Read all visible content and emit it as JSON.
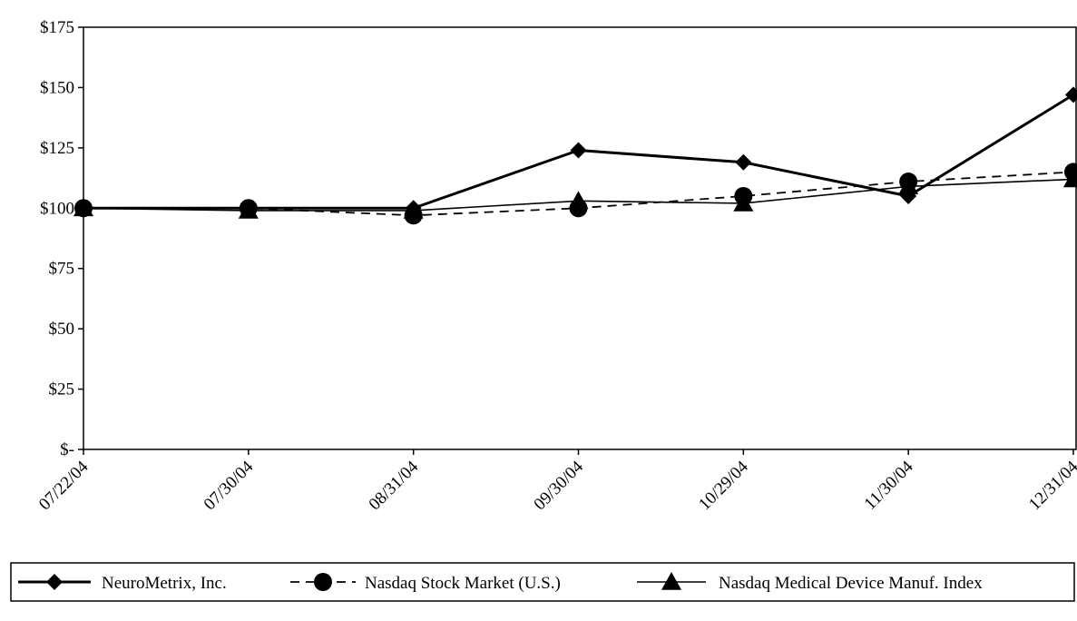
{
  "chart_data": {
    "type": "line",
    "categories": [
      "07/22/04",
      "07/30/04",
      "08/31/04",
      "09/30/04",
      "10/29/04",
      "11/30/04",
      "12/31/04"
    ],
    "y_ticks": [
      {
        "value": 0,
        "label": "$-"
      },
      {
        "value": 25,
        "label": "$25"
      },
      {
        "value": 50,
        "label": "$50"
      },
      {
        "value": 75,
        "label": "$75"
      },
      {
        "value": 100,
        "label": "$100"
      },
      {
        "value": 125,
        "label": "$125"
      },
      {
        "value": 150,
        "label": "$150"
      },
      {
        "value": 175,
        "label": "$175"
      }
    ],
    "ylim": [
      0,
      175
    ],
    "grid": false,
    "legend_position": "bottom",
    "series": [
      {
        "name": "NeuroMetrix, Inc.",
        "values": [
          100,
          100,
          100,
          124,
          119,
          105,
          147
        ],
        "marker": "diamond",
        "line_style": "solid-thick",
        "color": "#000000"
      },
      {
        "name": "Nasdaq Stock Market (U.S.)",
        "values": [
          100,
          100,
          97,
          100,
          105,
          111,
          115
        ],
        "marker": "circle",
        "line_style": "dashed",
        "color": "#000000"
      },
      {
        "name": "Nasdaq Medical Device Manuf. Index",
        "values": [
          100,
          99,
          99,
          103,
          102,
          109,
          112
        ],
        "marker": "triangle",
        "line_style": "solid-thin",
        "color": "#000000"
      }
    ]
  }
}
